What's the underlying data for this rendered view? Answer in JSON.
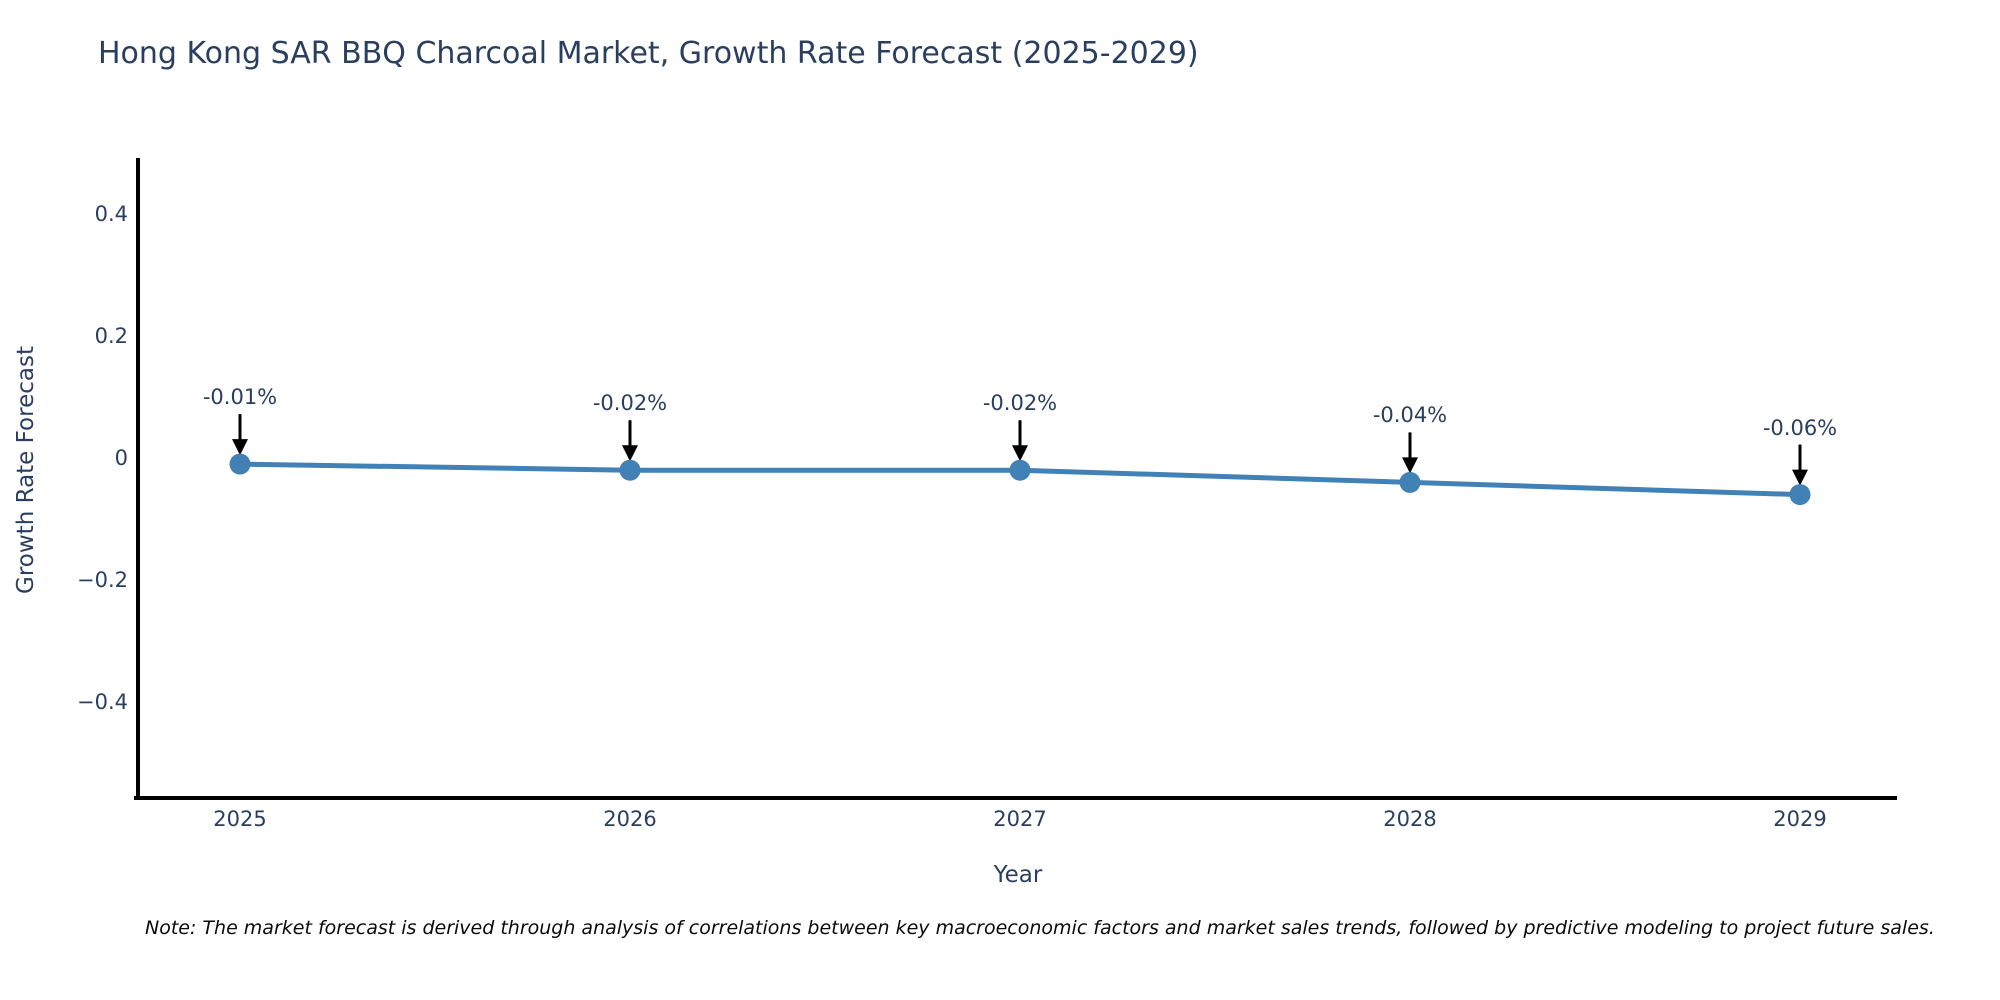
{
  "title": "Hong Kong SAR BBQ Charcoal Market, Growth Rate Forecast (2025-2029)",
  "note": "Note: The market forecast is derived through analysis of correlations between key macroeconomic factors and market sales trends, followed by predictive modeling to project future sales.",
  "chart_data": {
    "type": "line",
    "x": [
      2025,
      2026,
      2027,
      2028,
      2029
    ],
    "xtick_labels": [
      "2025",
      "2026",
      "2027",
      "2028",
      "2029"
    ],
    "series": [
      {
        "name": "Growth Rate Forecast",
        "values": [
          -0.01,
          -0.02,
          -0.02,
          -0.04,
          -0.06
        ]
      }
    ],
    "point_labels": [
      "-0.01%",
      "-0.02%",
      "-0.02%",
      "-0.04%",
      "-0.06%"
    ],
    "title": "Hong Kong SAR BBQ Charcoal Market, Growth Rate Forecast (2025-2029)",
    "xlabel": "Year",
    "ylabel": "Growth Rate Forecast",
    "yticks": [
      0.4,
      0.2,
      0,
      -0.2,
      -0.4
    ],
    "ytick_labels": [
      "0.4",
      "0.2",
      "0",
      "−0.2",
      "−0.4"
    ],
    "ylim": [
      -0.56,
      0.49
    ],
    "grid": false,
    "legend_position": "none",
    "marker_style": "circle",
    "annotation_arrows": true,
    "colors": {
      "line": "#4181b6",
      "marker": "#4181b6",
      "axis": "#000000",
      "text": "#2a3f5f",
      "arrow": "#000000",
      "background": "#ffffff"
    }
  }
}
